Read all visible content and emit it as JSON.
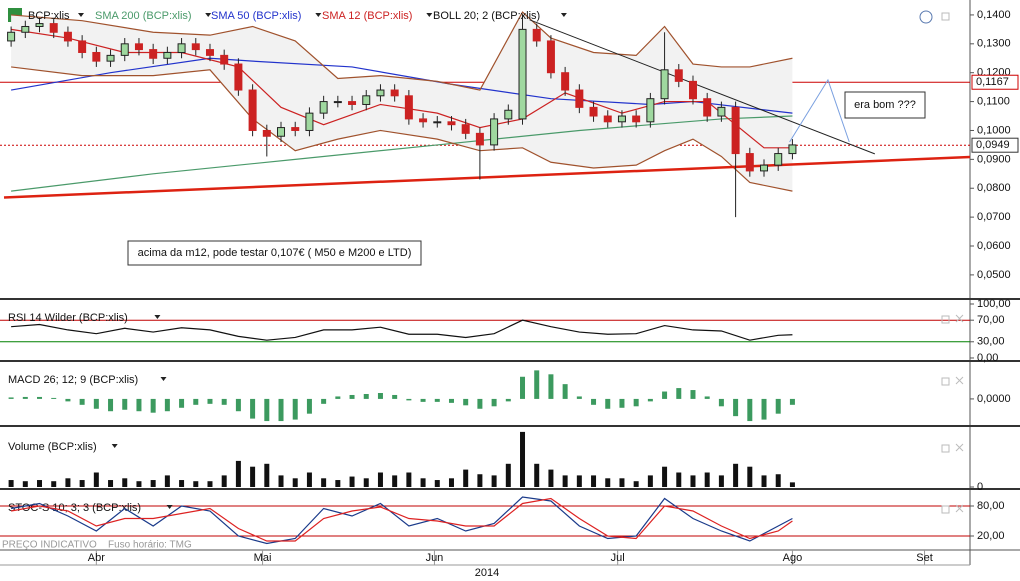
{
  "chart_data": [
    {
      "type": "candlestick",
      "symbol": "BCP:xlis",
      "up_color": "#9fd89f",
      "down_color": "#cc2222",
      "xlim": [
        -0.5,
        67.5
      ],
      "xticks": [
        {
          "value": 6,
          "label": "Abr"
        },
        {
          "value": 17.7,
          "label": "Mai"
        },
        {
          "value": 29.8,
          "label": "Jun"
        },
        {
          "value": 42.7,
          "label": "Jul"
        },
        {
          "value": 55,
          "label": "Ago"
        },
        {
          "value": 64.3,
          "label": "Set"
        }
      ],
      "year": "2014",
      "ylim": [
        0.042,
        0.1424
      ],
      "yticks": [
        {
          "value": 0.14,
          "label": "0,1400"
        },
        {
          "value": 0.13,
          "label": "0,1300"
        },
        {
          "value": 0.12,
          "label": "0,1200"
        },
        {
          "value": 0.11,
          "label": "0,1100"
        },
        {
          "value": 0.1,
          "label": "0,1000"
        },
        {
          "value": 0.09,
          "label": "0,0900"
        },
        {
          "value": 0.08,
          "label": "0,0800"
        },
        {
          "value": 0.07,
          "label": "0,0700"
        },
        {
          "value": 0.06,
          "label": "0,0600"
        },
        {
          "value": 0.05,
          "label": "0,0500"
        }
      ],
      "open": [
        0.131,
        0.134,
        0.136,
        0.137,
        0.134,
        0.131,
        0.127,
        0.124,
        0.126,
        0.13,
        0.128,
        0.125,
        0.127,
        0.13,
        0.128,
        0.126,
        0.123,
        0.114,
        0.1,
        0.098,
        0.101,
        0.1,
        0.106,
        0.11,
        0.11,
        0.109,
        0.112,
        0.114,
        0.112,
        0.104,
        0.103,
        0.103,
        0.102,
        0.099,
        0.095,
        0.104,
        0.104,
        0.135,
        0.131,
        0.12,
        0.114,
        0.108,
        0.105,
        0.103,
        0.105,
        0.103,
        0.111,
        0.121,
        0.117,
        0.111,
        0.105,
        0.108,
        0.092,
        0.086,
        0.088,
        0.092
      ],
      "high": [
        0.136,
        0.138,
        0.139,
        0.139,
        0.136,
        0.133,
        0.129,
        0.128,
        0.132,
        0.132,
        0.13,
        0.129,
        0.132,
        0.132,
        0.13,
        0.128,
        0.125,
        0.116,
        0.102,
        0.103,
        0.103,
        0.108,
        0.112,
        0.112,
        0.112,
        0.114,
        0.116,
        0.116,
        0.114,
        0.106,
        0.105,
        0.105,
        0.104,
        0.101,
        0.106,
        0.109,
        0.14,
        0.137,
        0.133,
        0.122,
        0.116,
        0.11,
        0.107,
        0.107,
        0.107,
        0.113,
        0.134,
        0.123,
        0.119,
        0.113,
        0.11,
        0.11,
        0.094,
        0.09,
        0.094,
        0.097
      ],
      "low": [
        0.129,
        0.132,
        0.134,
        0.132,
        0.129,
        0.125,
        0.122,
        0.122,
        0.124,
        0.126,
        0.123,
        0.123,
        0.125,
        0.126,
        0.124,
        0.121,
        0.112,
        0.098,
        0.091,
        0.096,
        0.098,
        0.098,
        0.104,
        0.108,
        0.107,
        0.107,
        0.11,
        0.11,
        0.102,
        0.101,
        0.101,
        0.1,
        0.097,
        0.083,
        0.093,
        0.102,
        0.102,
        0.129,
        0.118,
        0.112,
        0.106,
        0.103,
        0.101,
        0.101,
        0.101,
        0.101,
        0.109,
        0.115,
        0.109,
        0.103,
        0.103,
        0.07,
        0.084,
        0.084,
        0.086,
        0.09
      ],
      "close": [
        0.134,
        0.136,
        0.137,
        0.134,
        0.131,
        0.127,
        0.124,
        0.126,
        0.13,
        0.128,
        0.125,
        0.127,
        0.13,
        0.128,
        0.126,
        0.123,
        0.114,
        0.1,
        0.098,
        0.101,
        0.1,
        0.106,
        0.11,
        0.11,
        0.109,
        0.112,
        0.114,
        0.112,
        0.104,
        0.103,
        0.103,
        0.102,
        0.099,
        0.095,
        0.104,
        0.107,
        0.135,
        0.131,
        0.12,
        0.114,
        0.108,
        0.105,
        0.103,
        0.105,
        0.103,
        0.111,
        0.121,
        0.117,
        0.111,
        0.105,
        0.108,
        0.092,
        0.086,
        0.088,
        0.092,
        0.095
      ],
      "series": [
        {
          "name": "SMA 200 (BCP:xlis)",
          "color": "#4a9a6a",
          "x": [
            0,
            10,
            20,
            30,
            40,
            50,
            55
          ],
          "values": [
            0.079,
            0.085,
            0.09,
            0.095,
            0.1,
            0.104,
            0.105
          ]
        },
        {
          "name": "SMA 50 (BCP:xlis)",
          "color": "#2233cc",
          "x": [
            0,
            7,
            14,
            17,
            24,
            31,
            38,
            45,
            48,
            55
          ],
          "values": [
            0.114,
            0.12,
            0.125,
            0.124,
            0.122,
            0.116,
            0.111,
            0.109,
            0.11,
            0.106
          ]
        },
        {
          "name": "SMA 12 (BCP:xlis)",
          "color": "#cc2222",
          "x": [
            0,
            4,
            8,
            12,
            16,
            19,
            22,
            26,
            30,
            33,
            36,
            39,
            43,
            46,
            49,
            51,
            53,
            55
          ],
          "values": [
            0.135,
            0.132,
            0.127,
            0.127,
            0.122,
            0.108,
            0.102,
            0.109,
            0.106,
            0.101,
            0.104,
            0.113,
            0.106,
            0.11,
            0.11,
            0.102,
            0.094,
            0.094
          ]
        },
        {
          "name": "BOLL 20; 2 (BCP:xlis)",
          "color": "#a0522d",
          "x": [
            0,
            5,
            10,
            14,
            17,
            20,
            23,
            26,
            30,
            33,
            36,
            38,
            41,
            44,
            46,
            48,
            50,
            52,
            55
          ],
          "values": [
            0.14,
            0.138,
            0.134,
            0.133,
            0.136,
            0.131,
            0.118,
            0.119,
            0.117,
            0.114,
            0.141,
            0.132,
            0.127,
            0.126,
            0.136,
            0.123,
            0.122,
            0.122,
            0.125
          ],
          "lower": [
            0.122,
            0.119,
            0.119,
            0.121,
            0.104,
            0.093,
            0.097,
            0.1,
            0.097,
            0.093,
            0.094,
            0.089,
            0.087,
            0.088,
            0.093,
            0.097,
            0.091,
            0.082,
            0.079
          ]
        }
      ],
      "levels": [
        {
          "value": 0.1167,
          "label": "0,1167",
          "color": "#cc0000",
          "style": "solid"
        },
        {
          "value": 0.0949,
          "label": "0,0949",
          "color": "#cc0000",
          "style": "dotted"
        }
      ],
      "trendlines": [
        {
          "color": "#dd2211",
          "width": 2.5,
          "x": [
            -0.5,
            67.5
          ],
          "values": [
            0.0768,
            0.0908
          ]
        },
        {
          "color": "#222222",
          "width": 1,
          "x": [
            36.5,
            60.8
          ],
          "values": [
            0.1383,
            0.0919
          ]
        },
        {
          "color": "#7aa0e0",
          "width": 1,
          "x": [
            54.8,
            57.5,
            59.0
          ],
          "values": [
            0.096,
            0.1175,
            0.096
          ]
        }
      ],
      "annotations": [
        {
          "text": "era bom ???"
        },
        {
          "text": "acima da m12, pode testar 0,107€ ( M50 e M200 e LTD)"
        }
      ],
      "footer": "PREÇO INDICATIVO",
      "timezone": "Fuso horário: TMG"
    },
    {
      "type": "line",
      "title": "RSI 14 Wilder (BCP:xlis)",
      "ylim": [
        -5.6,
        107.4
      ],
      "yticks": [
        {
          "value": 100,
          "label": "100,00"
        },
        {
          "value": 70,
          "label": "70,00"
        },
        {
          "value": 30,
          "label": "30,00"
        },
        {
          "value": 0,
          "label": "0,00"
        }
      ],
      "levels": [
        {
          "value": 70,
          "color": "#c00000"
        },
        {
          "value": 30,
          "color": "#008000"
        }
      ],
      "series": [
        {
          "color": "#111111",
          "x": [
            0,
            2,
            4,
            6,
            8,
            10,
            12,
            14,
            16,
            18,
            20,
            22,
            24,
            26,
            28,
            30,
            32,
            34,
            36,
            38,
            40,
            42,
            44,
            46,
            48,
            50,
            52,
            54,
            55
          ],
          "values": [
            58,
            62,
            52,
            45,
            55,
            48,
            56,
            52,
            40,
            33,
            38,
            52,
            52,
            57,
            44,
            44,
            38,
            45,
            70,
            58,
            48,
            44,
            45,
            60,
            52,
            50,
            33,
            42,
            43
          ]
        }
      ]
    },
    {
      "type": "bar",
      "title": "MACD 26; 12; 9 (BCP:xlis)",
      "color": "#3c9a5f",
      "ylim": [
        -0.0053,
        0.0075
      ],
      "yticks": [
        {
          "value": 0,
          "label": "0,0000"
        }
      ],
      "values": [
        0.0003,
        0.0004,
        0.0004,
        0.0002,
        -0.0005,
        -0.0012,
        -0.002,
        -0.0025,
        -0.0022,
        -0.0025,
        -0.0028,
        -0.0025,
        -0.0018,
        -0.0012,
        -0.001,
        -0.0012,
        -0.0025,
        -0.004,
        -0.0045,
        -0.0045,
        -0.0042,
        -0.003,
        -0.001,
        0.0005,
        0.0008,
        0.001,
        0.0012,
        0.0008,
        -0.0003,
        -0.0006,
        -0.0006,
        -0.0008,
        -0.0013,
        -0.002,
        -0.0015,
        -0.0005,
        0.0045,
        0.0058,
        0.005,
        0.003,
        0.0005,
        -0.0012,
        -0.002,
        -0.0018,
        -0.0015,
        -0.0005,
        0.0015,
        0.0022,
        0.0018,
        0.0005,
        -0.0015,
        -0.0035,
        -0.0045,
        -0.0042,
        -0.003,
        -0.0012
      ]
    },
    {
      "type": "bar",
      "title": "Volume (BCP:xlis)",
      "color": "#111111",
      "ylim": [
        0,
        100
      ],
      "yticks": [
        0
      ],
      "values": [
        12,
        10,
        12,
        10,
        15,
        12,
        25,
        12,
        15,
        10,
        12,
        20,
        12,
        10,
        10,
        20,
        45,
        35,
        40,
        20,
        15,
        25,
        15,
        12,
        18,
        15,
        25,
        20,
        25,
        15,
        12,
        15,
        30,
        22,
        20,
        40,
        95,
        40,
        30,
        20,
        20,
        20,
        15,
        15,
        10,
        20,
        35,
        25,
        20,
        25,
        20,
        40,
        35,
        20,
        22,
        8
      ]
    },
    {
      "type": "line",
      "title": "STOC-S 10; 3; 3 (BCP:xlis)",
      "ylim": [
        -4,
        112
      ],
      "yticks": [
        {
          "value": 80,
          "label": "80,00"
        },
        {
          "value": 20,
          "label": "20,00"
        }
      ],
      "levels": [
        {
          "value": 80,
          "color": "#c00000"
        },
        {
          "value": 20,
          "color": "#c00000"
        }
      ],
      "series": [
        {
          "color": "#1a3a8a",
          "x": [
            0,
            2,
            4,
            6,
            8,
            10,
            12,
            14,
            16,
            18,
            20,
            22,
            24,
            26,
            28,
            30,
            32,
            34,
            36,
            38,
            40,
            42,
            44,
            46,
            48,
            50,
            52,
            54,
            55
          ],
          "values": [
            75,
            85,
            60,
            30,
            75,
            40,
            80,
            70,
            20,
            5,
            15,
            75,
            60,
            85,
            40,
            55,
            30,
            45,
            98,
            90,
            40,
            15,
            20,
            95,
            55,
            30,
            10,
            40,
            55
          ]
        },
        {
          "color": "#dd2222",
          "x": [
            0,
            2,
            4,
            6,
            8,
            10,
            12,
            14,
            16,
            18,
            20,
            22,
            24,
            26,
            28,
            30,
            32,
            34,
            36,
            38,
            40,
            42,
            44,
            46,
            48,
            50,
            52,
            54,
            55
          ],
          "values": [
            70,
            80,
            70,
            40,
            55,
            55,
            65,
            75,
            35,
            10,
            10,
            55,
            70,
            78,
            55,
            50,
            40,
            40,
            85,
            95,
            55,
            20,
            15,
            80,
            70,
            40,
            15,
            30,
            50
          ]
        }
      ]
    }
  ]
}
